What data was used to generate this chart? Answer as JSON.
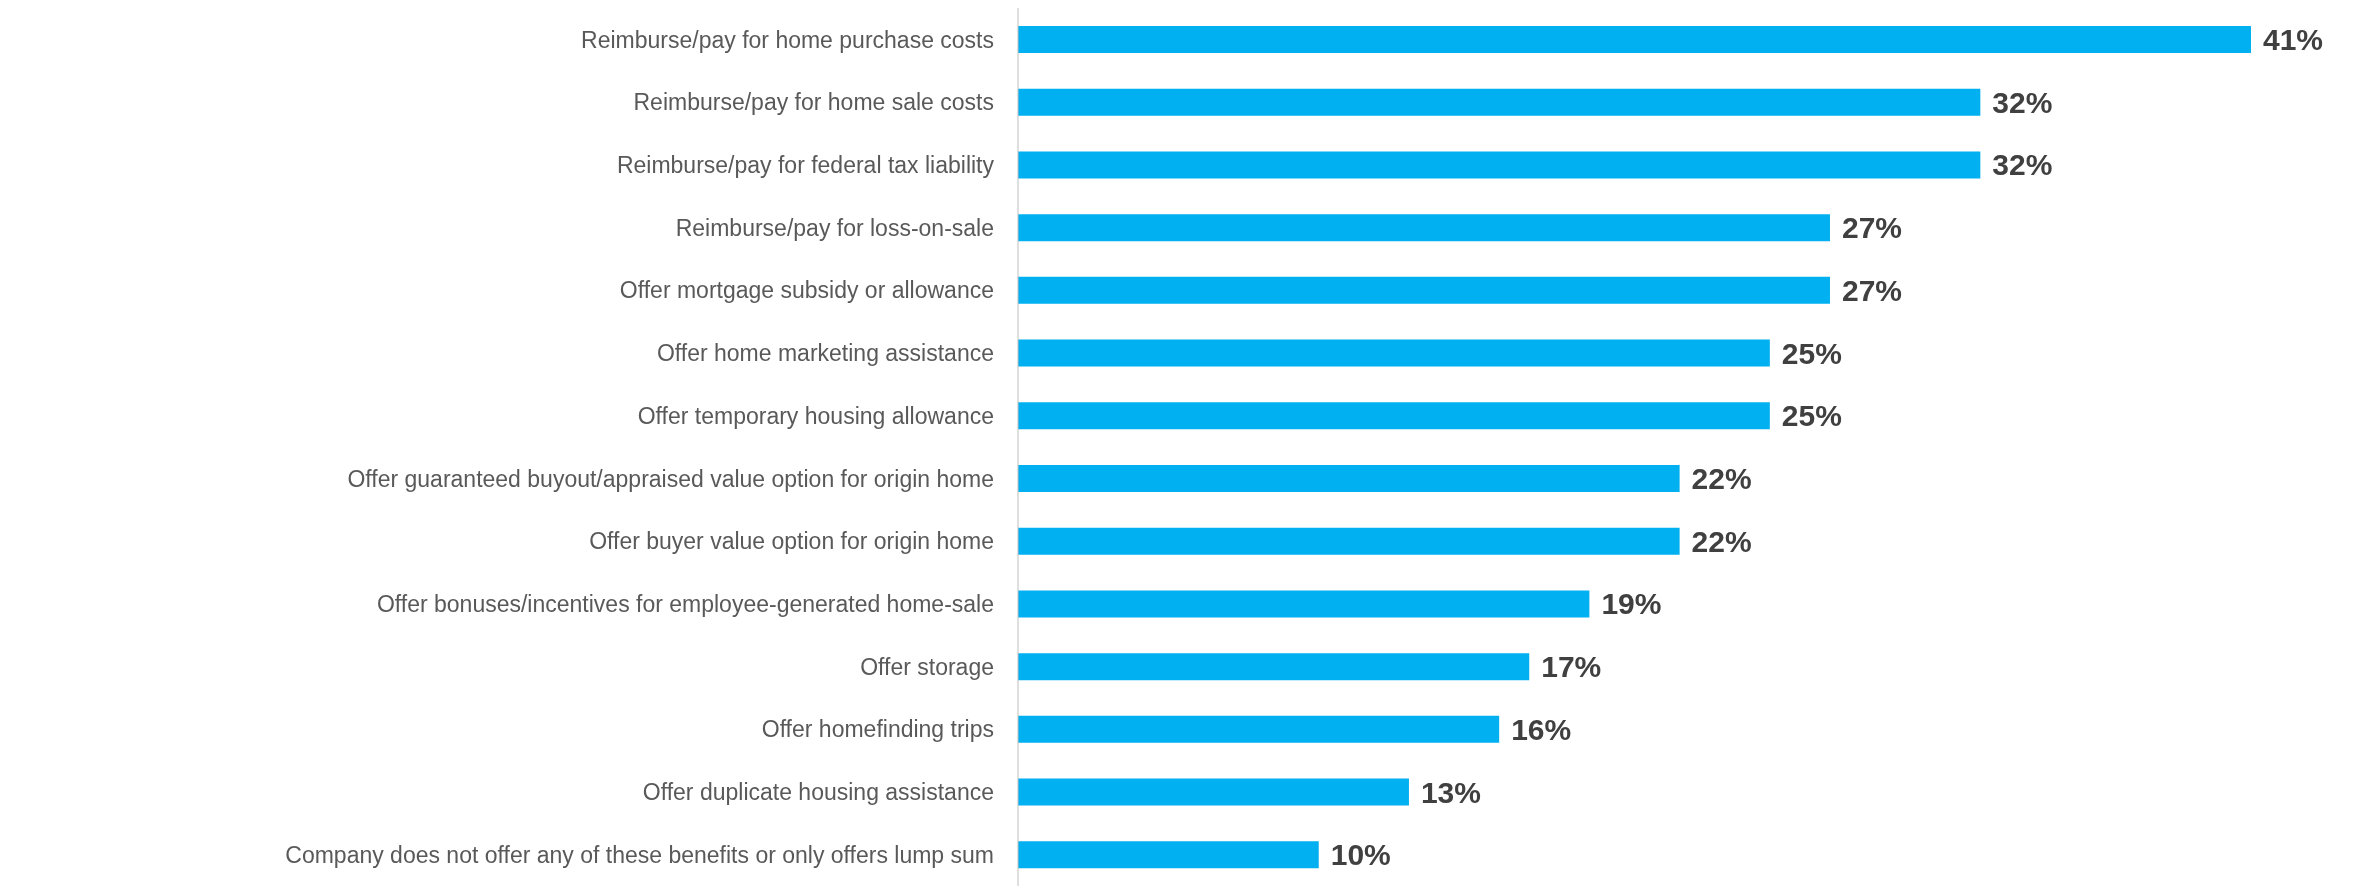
{
  "chart_data": {
    "type": "bar",
    "orientation": "horizontal",
    "categories": [
      "Reimburse/pay for home purchase costs",
      "Reimburse/pay for home sale costs",
      "Reimburse/pay for federal tax liability",
      "Reimburse/pay for loss-on-sale",
      "Offer mortgage subsidy or allowance",
      "Offer home marketing assistance",
      "Offer temporary housing allowance",
      "Offer guaranteed buyout/appraised value option for origin home",
      "Offer buyer value option for origin home",
      "Offer bonuses/incentives for employee-generated home-sale",
      "Offer storage",
      "Offer homefinding trips",
      "Offer duplicate housing assistance",
      "Company does not offer any of these benefits or only offers lump sum"
    ],
    "values": [
      41,
      32,
      32,
      27,
      27,
      25,
      25,
      22,
      22,
      19,
      17,
      16,
      13,
      10
    ],
    "value_labels": [
      "41%",
      "32%",
      "32%",
      "27%",
      "27%",
      "25%",
      "25%",
      "22%",
      "22%",
      "19%",
      "17%",
      "16%",
      "13%",
      "10%"
    ],
    "color": "#00b0f0"
  }
}
